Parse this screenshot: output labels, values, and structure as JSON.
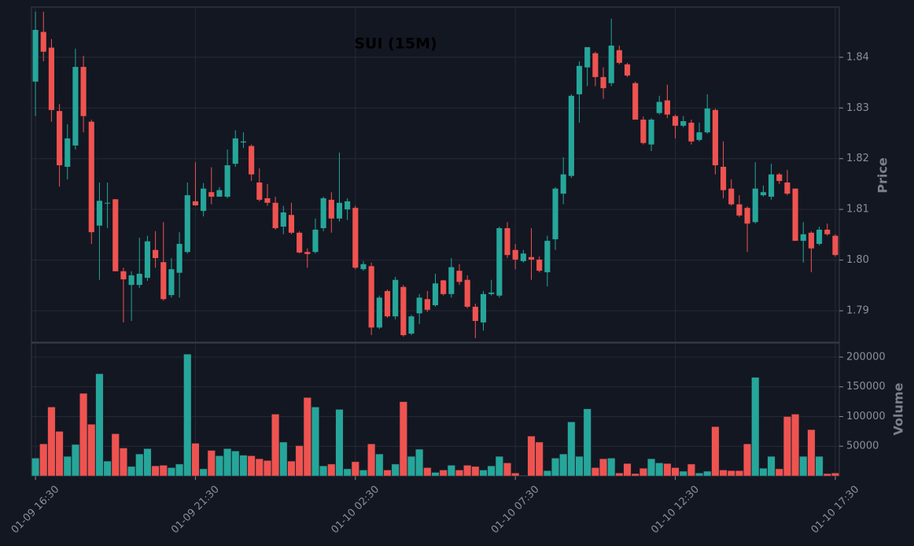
{
  "chart_data": {
    "type": "candlestick",
    "title": "SUI (15M)",
    "y_label": "Price",
    "up_color": "#26a69a",
    "down_color": "#ef5350",
    "grid": true,
    "categories": [
      "01-09 16:30",
      null,
      null,
      null,
      null,
      null,
      null,
      null,
      null,
      null,
      null,
      null,
      null,
      null,
      null,
      null,
      null,
      null,
      null,
      null,
      "01-09 21:30",
      null,
      null,
      null,
      null,
      null,
      null,
      null,
      null,
      null,
      null,
      null,
      null,
      null,
      null,
      null,
      null,
      null,
      null,
      null,
      "01-10 02:30",
      null,
      null,
      null,
      null,
      null,
      null,
      null,
      null,
      null,
      null,
      null,
      null,
      null,
      null,
      null,
      null,
      null,
      null,
      null,
      "01-10 07:30",
      null,
      null,
      null,
      null,
      null,
      null,
      null,
      null,
      null,
      null,
      null,
      null,
      null,
      null,
      null,
      null,
      null,
      null,
      null,
      "01-10 12:30",
      null,
      null,
      null,
      null,
      null,
      null,
      null,
      null,
      null,
      null,
      null,
      null,
      null,
      null,
      null,
      null,
      null,
      null,
      null,
      "01-10 17:30"
    ],
    "open": [
      1.8352,
      1.845,
      1.8419,
      1.8294,
      1.8184,
      1.8226,
      1.8381,
      1.8273,
      1.8068,
      1.8112,
      1.812,
      1.7978,
      1.7951,
      1.7951,
      1.7965,
      1.802,
      1.7996,
      1.7931,
      1.7975,
      1.8016,
      1.8116,
      1.8097,
      1.8134,
      1.8125,
      1.8125,
      1.819,
      1.8232,
      1.8225,
      1.8153,
      1.8122,
      1.8113,
      1.8066,
      1.8089,
      1.8054,
      1.8016,
      1.8016,
      1.8063,
      1.8119,
      1.8082,
      1.81,
      1.8103,
      1.7982,
      1.7988,
      1.7867,
      1.7939,
      1.7889,
      1.7947,
      1.7855,
      1.7895,
      1.7923,
      1.7911,
      1.796,
      1.7933,
      1.7979,
      1.7961,
      1.7908,
      1.7877,
      1.7933,
      1.793,
      1.8063,
      1.802,
      1.7998,
      1.8006,
      1.8001,
      1.7976,
      1.8041,
      1.8131,
      1.8166,
      1.8327,
      1.838,
      1.8408,
      1.8361,
      1.8349,
      1.8414,
      1.8386,
      1.8349,
      1.8277,
      1.8228,
      1.829,
      1.8315,
      1.8284,
      1.8265,
      1.8271,
      1.8237,
      1.8252,
      1.8296,
      1.8184,
      1.8141,
      1.811,
      1.8103,
      1.8075,
      1.8128,
      1.8125,
      1.8169,
      1.8153,
      1.8141,
      1.8038,
      1.8054,
      1.8032,
      1.806,
      1.8048
    ],
    "high": [
      1.849,
      1.849,
      1.8436,
      1.8308,
      1.8268,
      1.8417,
      1.8403,
      1.8277,
      1.8153,
      1.8153,
      1.812,
      1.7985,
      1.7978,
      1.8044,
      1.8048,
      1.8057,
      1.8075,
      1.8004,
      1.8055,
      1.8153,
      1.8193,
      1.8152,
      1.8183,
      1.8144,
      1.8218,
      1.8256,
      1.8252,
      1.8228,
      1.8181,
      1.815,
      1.8125,
      1.8107,
      1.8113,
      1.8057,
      1.8023,
      1.8082,
      1.8125,
      1.8134,
      1.8212,
      1.8122,
      1.8107,
      1.7998,
      1.7995,
      1.793,
      1.7942,
      1.7967,
      1.7951,
      1.7892,
      1.7933,
      1.7939,
      1.7973,
      1.7961,
      1.8004,
      1.7992,
      1.797,
      1.7914,
      1.7939,
      1.7961,
      1.8066,
      1.8075,
      1.8032,
      1.802,
      1.8063,
      1.8007,
      1.8048,
      1.8144,
      1.8203,
      1.8327,
      1.8392,
      1.842,
      1.8411,
      1.838,
      1.8476,
      1.8423,
      1.8389,
      1.8352,
      1.8283,
      1.828,
      1.8324,
      1.8346,
      1.8287,
      1.8284,
      1.8277,
      1.8271,
      1.8327,
      1.8299,
      1.8234,
      1.8159,
      1.8128,
      1.8106,
      1.8193,
      1.8147,
      1.819,
      1.8172,
      1.8178,
      1.8141,
      1.8075,
      1.8057,
      1.8066,
      1.8072,
      1.8051
    ],
    "low": [
      1.8284,
      1.8392,
      1.8273,
      1.8145,
      1.8159,
      1.8218,
      1.8252,
      1.8032,
      1.7961,
      1.8063,
      1.7978,
      1.7877,
      1.788,
      1.7945,
      1.7959,
      1.7985,
      1.792,
      1.7926,
      1.7926,
      1.8013,
      1.8107,
      1.8086,
      1.811,
      1.8125,
      1.8122,
      1.8184,
      1.8221,
      1.8156,
      1.8116,
      1.8107,
      1.806,
      1.8051,
      1.8051,
      1.8013,
      1.7985,
      1.8013,
      1.8057,
      1.8054,
      1.8076,
      1.8079,
      1.7982,
      1.7979,
      1.7852,
      1.7864,
      1.7886,
      1.7883,
      1.7849,
      1.7852,
      1.7874,
      1.7898,
      1.7908,
      1.793,
      1.7926,
      1.7951,
      1.7905,
      1.7846,
      1.7861,
      1.793,
      1.7926,
      1.8004,
      1.7982,
      1.7995,
      1.7961,
      1.7976,
      1.7948,
      1.802,
      1.811,
      1.8162,
      1.8271,
      1.8343,
      1.8343,
      1.8318,
      1.8343,
      1.8386,
      1.8361,
      1.8277,
      1.8228,
      1.8215,
      1.8287,
      1.828,
      1.824,
      1.8262,
      1.8228,
      1.8234,
      1.8249,
      1.8169,
      1.8122,
      1.8107,
      1.8085,
      1.8016,
      1.8072,
      1.8125,
      1.8119,
      1.815,
      1.8128,
      1.8038,
      1.7995,
      1.7976,
      1.8029,
      1.8048,
      1.8007
    ],
    "close": [
      1.8454,
      1.8411,
      1.8296,
      1.8187,
      1.824,
      1.8381,
      1.8284,
      1.8055,
      1.8117,
      1.8113,
      1.7978,
      1.7962,
      1.797,
      1.7973,
      1.8037,
      1.8004,
      1.7923,
      1.7982,
      1.8032,
      1.8128,
      1.8108,
      1.8141,
      1.8125,
      1.8138,
      1.8187,
      1.824,
      1.8234,
      1.8169,
      1.8119,
      1.8113,
      1.8063,
      1.8094,
      1.8054,
      1.8015,
      1.8012,
      1.806,
      1.8122,
      1.8082,
      1.8113,
      1.8116,
      1.7985,
      1.7992,
      1.7867,
      1.7926,
      1.7889,
      1.7961,
      1.7852,
      1.7889,
      1.7926,
      1.7902,
      1.7954,
      1.7933,
      1.7986,
      1.7957,
      1.7908,
      1.788,
      1.7933,
      1.7936,
      1.8063,
      1.801,
      1.8001,
      1.8013,
      1.8001,
      1.7979,
      1.8038,
      1.8141,
      1.8169,
      1.8324,
      1.8383,
      1.842,
      1.8361,
      1.8339,
      1.8423,
      1.8389,
      1.8364,
      1.8277,
      1.8231,
      1.8277,
      1.8312,
      1.8287,
      1.8265,
      1.8274,
      1.8234,
      1.8252,
      1.8299,
      1.8187,
      1.8138,
      1.811,
      1.8088,
      1.8072,
      1.8141,
      1.8134,
      1.8169,
      1.8156,
      1.8131,
      1.8038,
      1.8051,
      1.8023,
      1.806,
      1.8051,
      1.801
    ],
    "ylim": [
      1.7838,
      1.8499
    ],
    "yticks": [
      1.79,
      {
        "value": 1.8,
        "label": "1.80"
      },
      1.81,
      1.82,
      1.83,
      1.84
    ],
    "volume": {
      "label": "Volume",
      "values": [
        30000,
        54000,
        116000,
        75000,
        33000,
        53000,
        139000,
        87000,
        172000,
        25000,
        71000,
        47000,
        16000,
        37000,
        46000,
        17000,
        18000,
        14000,
        20000,
        205000,
        55000,
        12000,
        43000,
        34000,
        46000,
        42000,
        35000,
        34000,
        29000,
        26000,
        104000,
        57000,
        25000,
        51000,
        132000,
        116000,
        17000,
        20000,
        112000,
        12000,
        24000,
        10000,
        54000,
        37000,
        10000,
        20000,
        125000,
        33000,
        45000,
        14000,
        6000,
        10000,
        18000,
        10000,
        18000,
        16000,
        10000,
        17000,
        33000,
        22000,
        5000,
        1000,
        67000,
        57000,
        9000,
        30000,
        37000,
        91000,
        33000,
        113000,
        14000,
        29000,
        30000,
        5000,
        21000,
        4000,
        13000,
        29000,
        22000,
        21000,
        14000,
        8000,
        20000,
        5000,
        8000,
        83000,
        10000,
        9000,
        9000,
        54000,
        166000,
        13000,
        33000,
        12000,
        100000,
        104000,
        33000,
        78000,
        33000,
        4000,
        5000
      ],
      "ylim": [
        0,
        223700
      ],
      "yticks": [
        50000,
        100000,
        150000,
        200000
      ]
    }
  }
}
